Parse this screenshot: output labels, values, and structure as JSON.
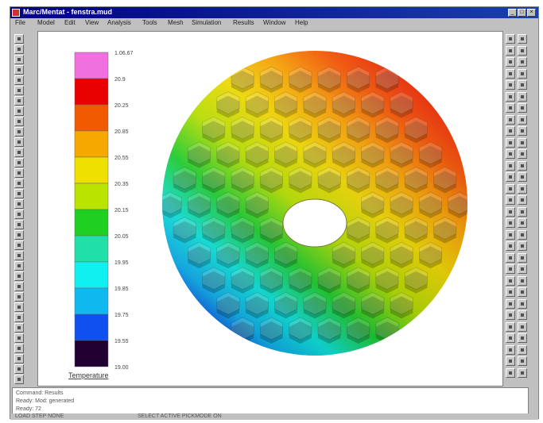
{
  "window": {
    "title": "Marc/Mentat - fenstra.mud",
    "controls": [
      "_",
      "□",
      "×"
    ]
  },
  "menu": {
    "items": [
      "File",
      "Model",
      "Edit",
      "View",
      "Analysis",
      "Tools",
      "Mesh",
      "Simulation",
      "Results",
      "Window",
      "Help"
    ]
  },
  "legend": {
    "values": [
      "1.06.67",
      "20.9",
      "20.25",
      "20.85",
      "20.55",
      "20.35",
      "20.15",
      "20.05",
      "19.95",
      "19.85",
      "19.75",
      "19.55",
      "19.00"
    ],
    "title": "Temperature",
    "colors": [
      "#f070e0",
      "#e80000",
      "#f05a00",
      "#f5a800",
      "#f0e000",
      "#b8e400",
      "#20d020",
      "#20dfa8",
      "#10f0f0",
      "#10b8f0",
      "#1050f0",
      "#200030"
    ]
  },
  "console": {
    "lines": [
      "Command: Results",
      "Ready: Mod: generated",
      "Ready: 72"
    ]
  },
  "statusbar": {
    "left": "LOAD  STEP  NONE",
    "right": "SELECT  ACTIVE  PICKMODE  ON"
  }
}
